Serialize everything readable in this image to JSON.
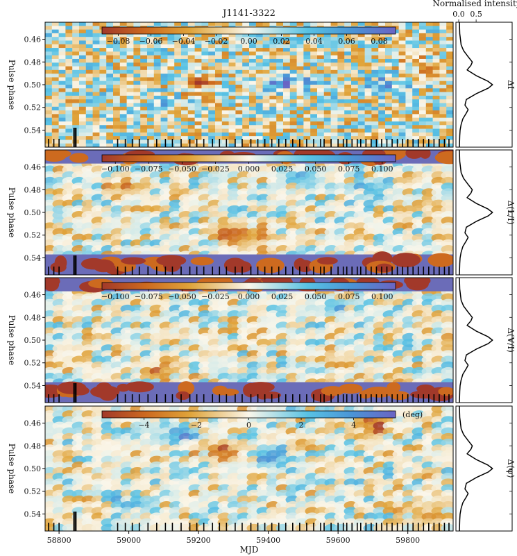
{
  "chart_data": {
    "type": "heatmap",
    "title": "J1141-3322",
    "xlabel": "MJD",
    "ylabel": "Pulse phase",
    "xlim": [
      58760,
      59930
    ],
    "ylim": [
      0.445,
      0.555
    ],
    "x_ticks": [
      58800,
      59000,
      59200,
      59400,
      59600,
      59800
    ],
    "y_ticks": [
      0.46,
      0.48,
      0.5,
      0.52,
      0.54
    ],
    "y_tick_labels": [
      "0.46",
      "0.48",
      "0.50",
      "0.52",
      "0.54"
    ],
    "profile_axis": {
      "label": "Normalised intensity",
      "ticks": [
        0.0,
        0.5
      ],
      "tick_labels": [
        "0.0",
        "0.5"
      ],
      "xlim": [
        0,
        1
      ]
    },
    "profile": {
      "phase": [
        0.445,
        0.455,
        0.465,
        0.47,
        0.475,
        0.48,
        0.483,
        0.487,
        0.492,
        0.497,
        0.5,
        0.503,
        0.508,
        0.513,
        0.518,
        0.522,
        0.525,
        0.53,
        0.535,
        0.54,
        0.545,
        0.555
      ],
      "intensity": [
        0.02,
        0.03,
        0.07,
        0.14,
        0.26,
        0.39,
        0.35,
        0.24,
        0.5,
        0.84,
        0.97,
        0.85,
        0.5,
        0.22,
        0.18,
        0.27,
        0.22,
        0.12,
        0.07,
        0.04,
        0.03,
        0.02
      ]
    },
    "observation_mjds": [
      58770,
      58785,
      58800,
      58843,
      58848,
      58968,
      58990,
      59010,
      59030,
      59055,
      59080,
      59105,
      59125,
      59150,
      59175,
      59195,
      59215,
      59240,
      59260,
      59280,
      59305,
      59325,
      59350,
      59370,
      59390,
      59410,
      59430,
      59450,
      59470,
      59490,
      59510,
      59530,
      59550,
      59560,
      59580,
      59600,
      59615,
      59625,
      59640,
      59655,
      59665,
      59680,
      59695,
      59710,
      59725,
      59740,
      59755,
      59770,
      59785,
      59800,
      59815,
      59830,
      59845,
      59860,
      59875,
      59890,
      59905,
      59918
    ],
    "panels": [
      {
        "name": "Delta I",
        "row_label": "ΔI",
        "colorbar": {
          "range": [
            -0.09,
            0.09
          ],
          "ticks": [
            -0.08,
            -0.06,
            -0.04,
            -0.02,
            0.0,
            0.02,
            0.04,
            0.06,
            0.08
          ],
          "tick_labels": [
            "−0.08",
            "−0.06",
            "−0.04",
            "−0.02",
            "0.00",
            "0.02",
            "0.04",
            "0.06",
            "0.08"
          ],
          "unit": ""
        },
        "style": "columns",
        "features": [
          {
            "mjd": 59200,
            "phase": 0.5,
            "value": -0.05
          },
          {
            "mjd": 59450,
            "phase": 0.497,
            "value": 0.06
          },
          {
            "mjd": 59750,
            "phase": 0.5,
            "value": 0.05
          },
          {
            "mjd": 59850,
            "phase": 0.485,
            "value": -0.04
          },
          {
            "mjd": 59100,
            "phase": 0.515,
            "value": 0.03
          }
        ]
      },
      {
        "name": "Delta L/I",
        "row_label": "Δ(L/I)",
        "colorbar": {
          "range": [
            -0.11,
            0.11
          ],
          "ticks": [
            -0.1,
            -0.075,
            -0.05,
            -0.025,
            0.0,
            0.025,
            0.05,
            0.075,
            0.1
          ],
          "tick_labels": [
            "−0.100",
            "−0.075",
            "−0.050",
            "−0.025",
            "0.000",
            "0.025",
            "0.050",
            "0.075",
            "0.100"
          ],
          "unit": ""
        },
        "style": "smooth-saturated",
        "features": [
          {
            "mjd": 59000,
            "phase": 0.475,
            "value": -0.06
          },
          {
            "mjd": 59320,
            "phase": 0.52,
            "value": -0.07
          },
          {
            "mjd": 59500,
            "phase": 0.47,
            "value": 0.06
          },
          {
            "mjd": 59700,
            "phase": 0.48,
            "value": 0.05
          }
        ]
      },
      {
        "name": "Delta V/I",
        "row_label": "Δ(V/I)",
        "colorbar": {
          "range": [
            -0.11,
            0.11
          ],
          "ticks": [
            -0.1,
            -0.075,
            -0.05,
            -0.025,
            0.0,
            0.025,
            0.05,
            0.075,
            0.1
          ],
          "tick_labels": [
            "−0.100",
            "−0.075",
            "−0.050",
            "−0.025",
            "0.000",
            "0.025",
            "0.050",
            "0.075",
            "0.100"
          ],
          "unit": ""
        },
        "style": "smooth-saturated",
        "features": [
          {
            "mjd": 59100,
            "phase": 0.53,
            "value": -0.05
          },
          {
            "mjd": 59350,
            "phase": 0.53,
            "value": 0.04
          },
          {
            "mjd": 59600,
            "phase": 0.47,
            "value": 0.05
          },
          {
            "mjd": 59760,
            "phase": 0.54,
            "value": -0.06
          }
        ]
      },
      {
        "name": "Delta psi",
        "row_label": "Δ⟨ψ⟩",
        "colorbar": {
          "range": [
            -5.6,
            5.6
          ],
          "ticks": [
            -4,
            -2,
            0,
            2,
            4
          ],
          "tick_labels": [
            "−4",
            "−2",
            "0",
            "2",
            "4"
          ],
          "unit": "(deg)"
        },
        "style": "smooth",
        "features": [
          {
            "mjd": 59140,
            "phase": 0.468,
            "value": 3.5
          },
          {
            "mjd": 59260,
            "phase": 0.485,
            "value": -3.0
          },
          {
            "mjd": 59420,
            "phase": 0.49,
            "value": 3.8
          },
          {
            "mjd": 59700,
            "phase": 0.462,
            "value": -4.5
          },
          {
            "mjd": 59010,
            "phase": 0.53,
            "value": 3.2
          },
          {
            "mjd": 59870,
            "phase": 0.54,
            "value": -3.5
          }
        ]
      }
    ]
  }
}
